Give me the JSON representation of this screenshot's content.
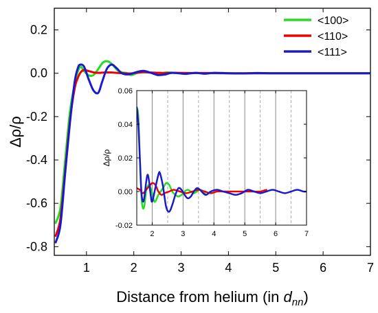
{
  "chart_data": [
    {
      "type": "line",
      "title": "",
      "xlabel_main": "Distance from helium (in ",
      "xlabel_sub_d": "d",
      "xlabel_sub_nn": "nn",
      "xlabel_close": ")",
      "ylabel": "Δρ/ρ",
      "xlim": [
        0.32,
        7.0
      ],
      "ylim": [
        -0.84,
        0.3
      ],
      "xticks": [
        1,
        2,
        3,
        4,
        5,
        6,
        7
      ],
      "xtick_labels": [
        "1",
        "2",
        "3",
        "4",
        "5",
        "6",
        "7"
      ],
      "yticks": [
        -0.8,
        -0.6,
        -0.4,
        -0.2,
        0.0,
        0.2
      ],
      "ytick_labels": [
        "-0.8",
        "-0.6",
        "-0.4",
        "-0.2",
        "0.0",
        "0.2"
      ],
      "legend_position": "top-right",
      "series": [
        {
          "name": "<100>",
          "color": "#22dd22",
          "x": [
            0.35,
            0.45,
            0.55,
            0.65,
            0.75,
            0.82,
            0.88,
            0.95,
            1.05,
            1.15,
            1.25,
            1.35,
            1.45,
            1.55,
            1.65,
            1.75,
            1.85,
            1.95,
            2.1,
            2.3,
            2.5,
            2.7,
            2.9,
            3.1,
            3.4,
            3.7,
            4.0,
            4.5,
            5.0,
            5.5,
            6.0,
            6.5,
            7.0
          ],
          "y": [
            -0.69,
            -0.62,
            -0.4,
            -0.18,
            -0.05,
            0.01,
            0.03,
            0.01,
            -0.01,
            -0.008,
            0.02,
            0.05,
            0.055,
            0.04,
            0.015,
            0.004,
            0.001,
            -0.008,
            0.003,
            0.004,
            -0.002,
            0.004,
            0.001,
            0.0,
            0.001,
            0.0,
            0.0,
            0.0,
            0.0,
            0.0,
            0.0,
            0.0,
            0.0
          ]
        },
        {
          "name": "<110>",
          "color": "#ee0000",
          "x": [
            0.35,
            0.45,
            0.55,
            0.65,
            0.75,
            0.82,
            0.88,
            0.95,
            1.05,
            1.15,
            1.25,
            1.35,
            1.5,
            1.7,
            1.9,
            2.1,
            2.2,
            2.3,
            2.5,
            2.7,
            2.9,
            3.2,
            3.6,
            4.0,
            4.5,
            5.0,
            5.5,
            6.0,
            6.5,
            7.0
          ],
          "y": [
            -0.75,
            -0.67,
            -0.45,
            -0.22,
            -0.07,
            -0.02,
            0.005,
            0.015,
            0.01,
            0.004,
            0.002,
            0.003,
            0.004,
            0.001,
            -0.001,
            0.003,
            0.005,
            0.004,
            0.002,
            0.001,
            0.002,
            0.001,
            0.001,
            0.0,
            0.0,
            0.0,
            0.0,
            0.0,
            0.0,
            0.0
          ]
        },
        {
          "name": "<111>",
          "color": "#1a1acc",
          "x": [
            0.35,
            0.45,
            0.55,
            0.65,
            0.75,
            0.82,
            0.87,
            0.95,
            1.05,
            1.15,
            1.25,
            1.33,
            1.43,
            1.53,
            1.63,
            1.75,
            1.9,
            2.05,
            2.2,
            2.35,
            2.5,
            2.65,
            2.8,
            2.95,
            3.1,
            3.3,
            3.5,
            3.7,
            4.0,
            4.3,
            4.6,
            5.0,
            5.5,
            6.0,
            6.5,
            7.0
          ],
          "y": [
            -0.78,
            -0.7,
            -0.46,
            -0.23,
            -0.04,
            0.025,
            0.04,
            0.03,
            -0.03,
            -0.08,
            -0.09,
            -0.04,
            0.02,
            0.04,
            0.025,
            0.0,
            -0.005,
            0.005,
            0.011,
            0.003,
            -0.008,
            -0.006,
            0.002,
            0.0,
            -0.003,
            0.002,
            -0.002,
            0.002,
            0.0,
            -0.001,
            0.001,
            0.0,
            0.0,
            0.0,
            0.0,
            0.0
          ]
        }
      ]
    },
    {
      "type": "line",
      "role": "inset",
      "title": "",
      "xlabel": "",
      "ylabel": "Δρ/ρ",
      "xlim": [
        1.5,
        7.0
      ],
      "ylim": [
        -0.02,
        0.06
      ],
      "xticks": [
        2,
        3,
        4,
        5,
        6,
        7
      ],
      "xtick_labels": [
        "2",
        "3",
        "4",
        "5",
        "6",
        "7"
      ],
      "yticks": [
        -0.02,
        0.0,
        0.02,
        0.04,
        0.06
      ],
      "ytick_labels": [
        "-0.02",
        "0.00",
        "0.02",
        "0.04",
        "0.06"
      ],
      "solid_gridlines_x": [
        2,
        3,
        4,
        5,
        6
      ],
      "dashed_gridlines_x": [
        2.5,
        3.5,
        4.5,
        5.5,
        6.5
      ],
      "series": [
        {
          "color": "#22dd22",
          "x": [
            1.5,
            1.55,
            1.6,
            1.65,
            1.7,
            1.75,
            1.8,
            1.85,
            1.9,
            1.95,
            2.0,
            2.05,
            2.1,
            2.2,
            2.35,
            2.45,
            2.55,
            2.65,
            2.75,
            2.85,
            2.95,
            3.05,
            3.15,
            3.25,
            3.35,
            3.45,
            3.55,
            3.65,
            3.75
          ],
          "y": [
            0.05,
            0.045,
            0.02,
            -0.003,
            -0.01,
            -0.008,
            0.0,
            0.003,
            0.004,
            0.002,
            -0.001,
            -0.005,
            -0.006,
            -0.002,
            0.002,
            0.005,
            0.004,
            0.0,
            -0.002,
            -0.003,
            -0.002,
            0.0,
            0.001,
            0.0,
            -0.001,
            0.0,
            0.001,
            0.0,
            -0.002
          ]
        },
        {
          "color": "#ee0000",
          "x": [
            1.5,
            1.6,
            1.7,
            1.8,
            1.9,
            2.0,
            2.1,
            2.2,
            2.3,
            2.4,
            2.55,
            2.7,
            2.9,
            3.1,
            3.3,
            3.5,
            3.7,
            3.9,
            4.1,
            4.3,
            4.5,
            4.7,
            4.9,
            5.1,
            5.3,
            5.5,
            5.7
          ],
          "y": [
            0.002,
            0.001,
            -0.001,
            0.001,
            0.003,
            0.005,
            0.004,
            0.0,
            -0.002,
            -0.001,
            0.0,
            0.001,
            0.0,
            -0.001,
            0.0,
            0.001,
            0.0,
            -0.001,
            0.0,
            0.0,
            0.0,
            0.0,
            0.0,
            0.0,
            0.0,
            0.0,
            0.001
          ]
        },
        {
          "color": "#1a1acc",
          "x": [
            1.5,
            1.55,
            1.6,
            1.65,
            1.7,
            1.75,
            1.8,
            1.85,
            1.9,
            1.95,
            2.0,
            2.1,
            2.2,
            2.25,
            2.35,
            2.45,
            2.55,
            2.65,
            2.75,
            2.85,
            2.95,
            3.05,
            3.15,
            3.25,
            3.35,
            3.45,
            3.55,
            3.65,
            3.75,
            3.9,
            4.1,
            4.3,
            4.5,
            4.7,
            4.9,
            5.1,
            5.3,
            5.5,
            5.7,
            5.9,
            6.1,
            6.3,
            6.5,
            6.7,
            6.9,
            7.0
          ],
          "y": [
            0.05,
            0.04,
            0.02,
            0.0,
            -0.006,
            -0.003,
            0.005,
            0.01,
            0.006,
            -0.002,
            -0.006,
            0.002,
            0.01,
            0.011,
            0.003,
            -0.009,
            -0.012,
            -0.008,
            -0.002,
            0.002,
            0.001,
            -0.002,
            -0.004,
            -0.003,
            0.0,
            0.002,
            0.001,
            -0.001,
            -0.002,
            0.0,
            0.001,
            0.0,
            -0.001,
            -0.002,
            -0.001,
            0.001,
            0.0,
            -0.001,
            0.0,
            0.001,
            0.0,
            -0.001,
            0.0,
            0.001,
            0.0,
            0.0
          ]
        }
      ]
    }
  ]
}
